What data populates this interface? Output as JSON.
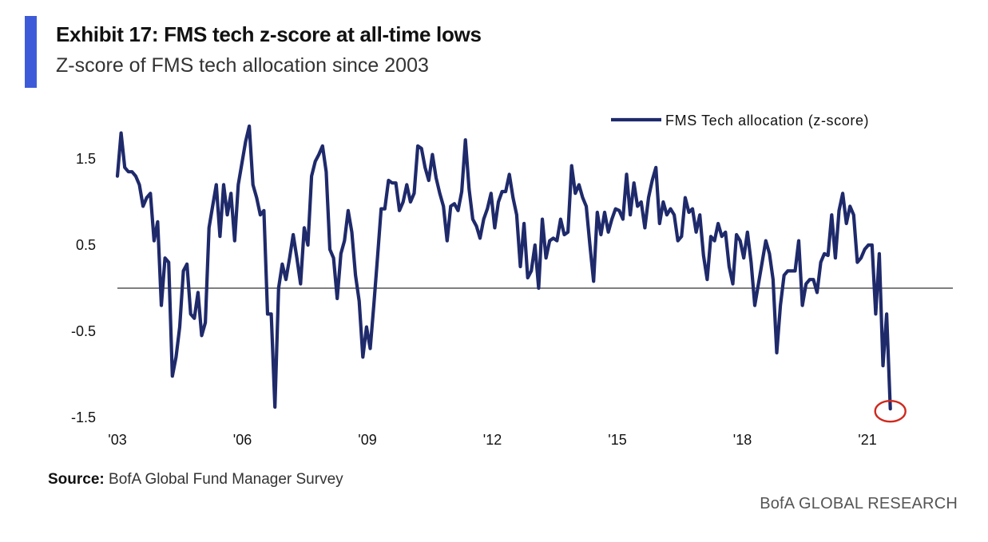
{
  "header": {
    "title": "Exhibit 17: FMS tech z-score at all-time lows",
    "subtitle": "Z-score of FMS tech allocation since 2003"
  },
  "footer": {
    "source_label": "Source:",
    "source_text": "BofA Global Fund Manager Survey",
    "brand": "BofA GLOBAL RESEARCH"
  },
  "colors": {
    "accent": "#3d5bd9",
    "series": "#1f2a6b",
    "zero_line": "#555555",
    "highlight_circle": "#d0281e"
  },
  "chart_data": {
    "type": "line",
    "title": "",
    "xlabel": "",
    "ylabel": "",
    "legend_position": "top-right",
    "grid": false,
    "xlim": [
      2003.0,
      2024.2
    ],
    "ylim": [
      -1.5,
      1.9
    ],
    "x_ticks": [
      2003,
      2006,
      2009,
      2012,
      2015,
      2018,
      2021
    ],
    "x_tick_labels": [
      "'03",
      "'06",
      "'09",
      "'12",
      "'15",
      "'18",
      "'21"
    ],
    "y_ticks": [
      1.5,
      0.5,
      -0.5,
      -1.5
    ],
    "y_tick_labels": [
      "1.5",
      "0.5",
      "-0.5",
      "-1.5"
    ],
    "reference_line": 0,
    "highlight": {
      "x": 2021.55,
      "y": -1.4
    },
    "series": [
      {
        "name": "FMS Tech allocation (z-score)",
        "points": [
          [
            2003.0,
            1.3
          ],
          [
            2003.08,
            1.8
          ],
          [
            2003.17,
            1.4
          ],
          [
            2003.25,
            1.35
          ],
          [
            2003.33,
            1.35
          ],
          [
            2003.42,
            1.3
          ],
          [
            2003.5,
            1.2
          ],
          [
            2003.58,
            0.95
          ],
          [
            2003.67,
            1.05
          ],
          [
            2003.75,
            1.1
          ],
          [
            2003.83,
            0.55
          ],
          [
            2003.92,
            0.77
          ],
          [
            2004.0,
            -0.2
          ],
          [
            2004.08,
            0.35
          ],
          [
            2004.17,
            0.3
          ],
          [
            2004.25,
            -1.02
          ],
          [
            2004.33,
            -0.8
          ],
          [
            2004.42,
            -0.45
          ],
          [
            2004.5,
            0.2
          ],
          [
            2004.58,
            0.28
          ],
          [
            2004.67,
            -0.3
          ],
          [
            2004.75,
            -0.35
          ],
          [
            2004.83,
            -0.05
          ],
          [
            2004.92,
            -0.55
          ],
          [
            2005.0,
            -0.4
          ],
          [
            2005.08,
            0.7
          ],
          [
            2005.17,
            0.95
          ],
          [
            2005.25,
            1.2
          ],
          [
            2005.33,
            0.6
          ],
          [
            2005.42,
            1.2
          ],
          [
            2005.5,
            0.85
          ],
          [
            2005.58,
            1.1
          ],
          [
            2005.67,
            0.55
          ],
          [
            2005.75,
            1.2
          ],
          [
            2005.83,
            1.45
          ],
          [
            2005.92,
            1.7
          ],
          [
            2006.0,
            1.88
          ],
          [
            2006.08,
            1.2
          ],
          [
            2006.17,
            1.05
          ],
          [
            2006.25,
            0.85
          ],
          [
            2006.33,
            0.9
          ],
          [
            2006.42,
            -0.3
          ],
          [
            2006.5,
            -0.3
          ],
          [
            2006.58,
            -1.38
          ],
          [
            2006.67,
            0.0
          ],
          [
            2006.75,
            0.28
          ],
          [
            2006.83,
            0.1
          ],
          [
            2006.92,
            0.35
          ],
          [
            2007.0,
            0.62
          ],
          [
            2007.08,
            0.35
          ],
          [
            2007.17,
            0.05
          ],
          [
            2007.25,
            0.7
          ],
          [
            2007.33,
            0.5
          ],
          [
            2007.42,
            1.3
          ],
          [
            2007.5,
            1.47
          ],
          [
            2007.58,
            1.55
          ],
          [
            2007.67,
            1.65
          ],
          [
            2007.75,
            1.35
          ],
          [
            2007.83,
            0.45
          ],
          [
            2007.92,
            0.35
          ],
          [
            2008.0,
            -0.12
          ],
          [
            2008.08,
            0.4
          ],
          [
            2008.17,
            0.55
          ],
          [
            2008.25,
            0.9
          ],
          [
            2008.33,
            0.65
          ],
          [
            2008.42,
            0.15
          ],
          [
            2008.5,
            -0.15
          ],
          [
            2008.58,
            -0.8
          ],
          [
            2008.67,
            -0.45
          ],
          [
            2008.75,
            -0.7
          ],
          [
            2008.83,
            -0.2
          ],
          [
            2008.92,
            0.35
          ],
          [
            2009.0,
            0.92
          ],
          [
            2009.08,
            0.92
          ],
          [
            2009.17,
            1.25
          ],
          [
            2009.25,
            1.22
          ],
          [
            2009.33,
            1.22
          ],
          [
            2009.42,
            0.9
          ],
          [
            2009.5,
            1.0
          ],
          [
            2009.58,
            1.2
          ],
          [
            2009.67,
            1.0
          ],
          [
            2009.75,
            1.1
          ],
          [
            2009.83,
            1.65
          ],
          [
            2009.92,
            1.62
          ],
          [
            2010.0,
            1.4
          ],
          [
            2010.08,
            1.25
          ],
          [
            2010.17,
            1.55
          ],
          [
            2010.25,
            1.28
          ],
          [
            2010.33,
            1.1
          ],
          [
            2010.42,
            0.95
          ],
          [
            2010.5,
            0.55
          ],
          [
            2010.58,
            0.95
          ],
          [
            2010.67,
            0.98
          ],
          [
            2010.75,
            0.9
          ],
          [
            2010.83,
            1.12
          ],
          [
            2010.92,
            1.72
          ],
          [
            2011.0,
            1.15
          ],
          [
            2011.08,
            0.8
          ],
          [
            2011.17,
            0.72
          ],
          [
            2011.25,
            0.58
          ],
          [
            2011.33,
            0.8
          ],
          [
            2011.42,
            0.92
          ],
          [
            2011.5,
            1.1
          ],
          [
            2011.58,
            0.7
          ],
          [
            2011.67,
            1.0
          ],
          [
            2011.75,
            1.12
          ],
          [
            2011.83,
            1.12
          ],
          [
            2011.92,
            1.32
          ],
          [
            2012.0,
            1.05
          ],
          [
            2012.08,
            0.85
          ],
          [
            2012.17,
            0.25
          ],
          [
            2012.25,
            0.75
          ],
          [
            2012.33,
            0.12
          ],
          [
            2012.42,
            0.2
          ],
          [
            2012.5,
            0.5
          ],
          [
            2012.58,
            0.0
          ],
          [
            2012.67,
            0.8
          ],
          [
            2012.75,
            0.35
          ],
          [
            2012.83,
            0.55
          ],
          [
            2012.92,
            0.58
          ],
          [
            2013.0,
            0.55
          ],
          [
            2013.08,
            0.8
          ],
          [
            2013.17,
            0.62
          ],
          [
            2013.25,
            0.65
          ],
          [
            2013.33,
            1.42
          ],
          [
            2013.42,
            1.1
          ],
          [
            2013.5,
            1.2
          ],
          [
            2013.58,
            1.05
          ],
          [
            2013.67,
            0.95
          ],
          [
            2013.75,
            0.5
          ],
          [
            2013.83,
            0.08
          ],
          [
            2013.92,
            0.88
          ],
          [
            2014.0,
            0.62
          ],
          [
            2014.08,
            0.88
          ],
          [
            2014.17,
            0.65
          ],
          [
            2014.25,
            0.8
          ],
          [
            2014.33,
            0.92
          ],
          [
            2014.42,
            0.9
          ],
          [
            2014.5,
            0.8
          ],
          [
            2014.58,
            1.32
          ],
          [
            2014.67,
            0.85
          ],
          [
            2014.75,
            1.22
          ],
          [
            2014.83,
            0.95
          ],
          [
            2014.92,
            1.0
          ],
          [
            2015.0,
            0.7
          ],
          [
            2015.08,
            1.05
          ],
          [
            2015.17,
            1.25
          ],
          [
            2015.25,
            1.4
          ],
          [
            2015.33,
            0.75
          ],
          [
            2015.42,
            1.0
          ],
          [
            2015.5,
            0.85
          ],
          [
            2015.58,
            0.92
          ],
          [
            2015.67,
            0.85
          ],
          [
            2015.75,
            0.55
          ],
          [
            2015.83,
            0.6
          ],
          [
            2015.92,
            1.05
          ],
          [
            2016.0,
            0.88
          ],
          [
            2016.08,
            0.92
          ],
          [
            2016.17,
            0.65
          ],
          [
            2016.25,
            0.85
          ],
          [
            2016.33,
            0.38
          ],
          [
            2016.42,
            0.1
          ],
          [
            2016.5,
            0.6
          ],
          [
            2016.58,
            0.55
          ],
          [
            2016.67,
            0.75
          ],
          [
            2016.75,
            0.6
          ],
          [
            2016.83,
            0.65
          ],
          [
            2016.92,
            0.25
          ],
          [
            2017.0,
            0.05
          ],
          [
            2017.08,
            0.62
          ],
          [
            2017.17,
            0.55
          ],
          [
            2017.25,
            0.35
          ],
          [
            2017.33,
            0.65
          ],
          [
            2017.42,
            0.3
          ],
          [
            2017.5,
            -0.2
          ],
          [
            2017.58,
            0.05
          ],
          [
            2017.67,
            0.3
          ],
          [
            2017.75,
            0.55
          ],
          [
            2017.83,
            0.4
          ],
          [
            2017.92,
            0.1
          ],
          [
            2018.0,
            -0.75
          ],
          [
            2018.08,
            -0.2
          ],
          [
            2018.17,
            0.15
          ],
          [
            2018.25,
            0.2
          ],
          [
            2018.33,
            0.2
          ],
          [
            2018.42,
            0.2
          ],
          [
            2018.5,
            0.55
          ],
          [
            2018.58,
            -0.2
          ],
          [
            2018.67,
            0.05
          ],
          [
            2018.75,
            0.1
          ],
          [
            2018.83,
            0.1
          ],
          [
            2018.92,
            -0.05
          ],
          [
            2019.0,
            0.3
          ],
          [
            2019.08,
            0.4
          ],
          [
            2019.17,
            0.38
          ],
          [
            2019.25,
            0.85
          ],
          [
            2019.33,
            0.35
          ],
          [
            2019.42,
            0.9
          ],
          [
            2019.5,
            1.1
          ],
          [
            2019.58,
            0.75
          ],
          [
            2019.67,
            0.95
          ],
          [
            2019.75,
            0.85
          ],
          [
            2019.83,
            0.3
          ],
          [
            2019.92,
            0.35
          ],
          [
            2020.0,
            0.45
          ],
          [
            2020.08,
            0.5
          ],
          [
            2020.17,
            0.5
          ],
          [
            2020.25,
            -0.3
          ],
          [
            2020.33,
            0.4
          ],
          [
            2020.42,
            -0.9
          ],
          [
            2020.5,
            -0.3
          ],
          [
            2020.58,
            -1.4
          ]
        ]
      }
    ]
  }
}
